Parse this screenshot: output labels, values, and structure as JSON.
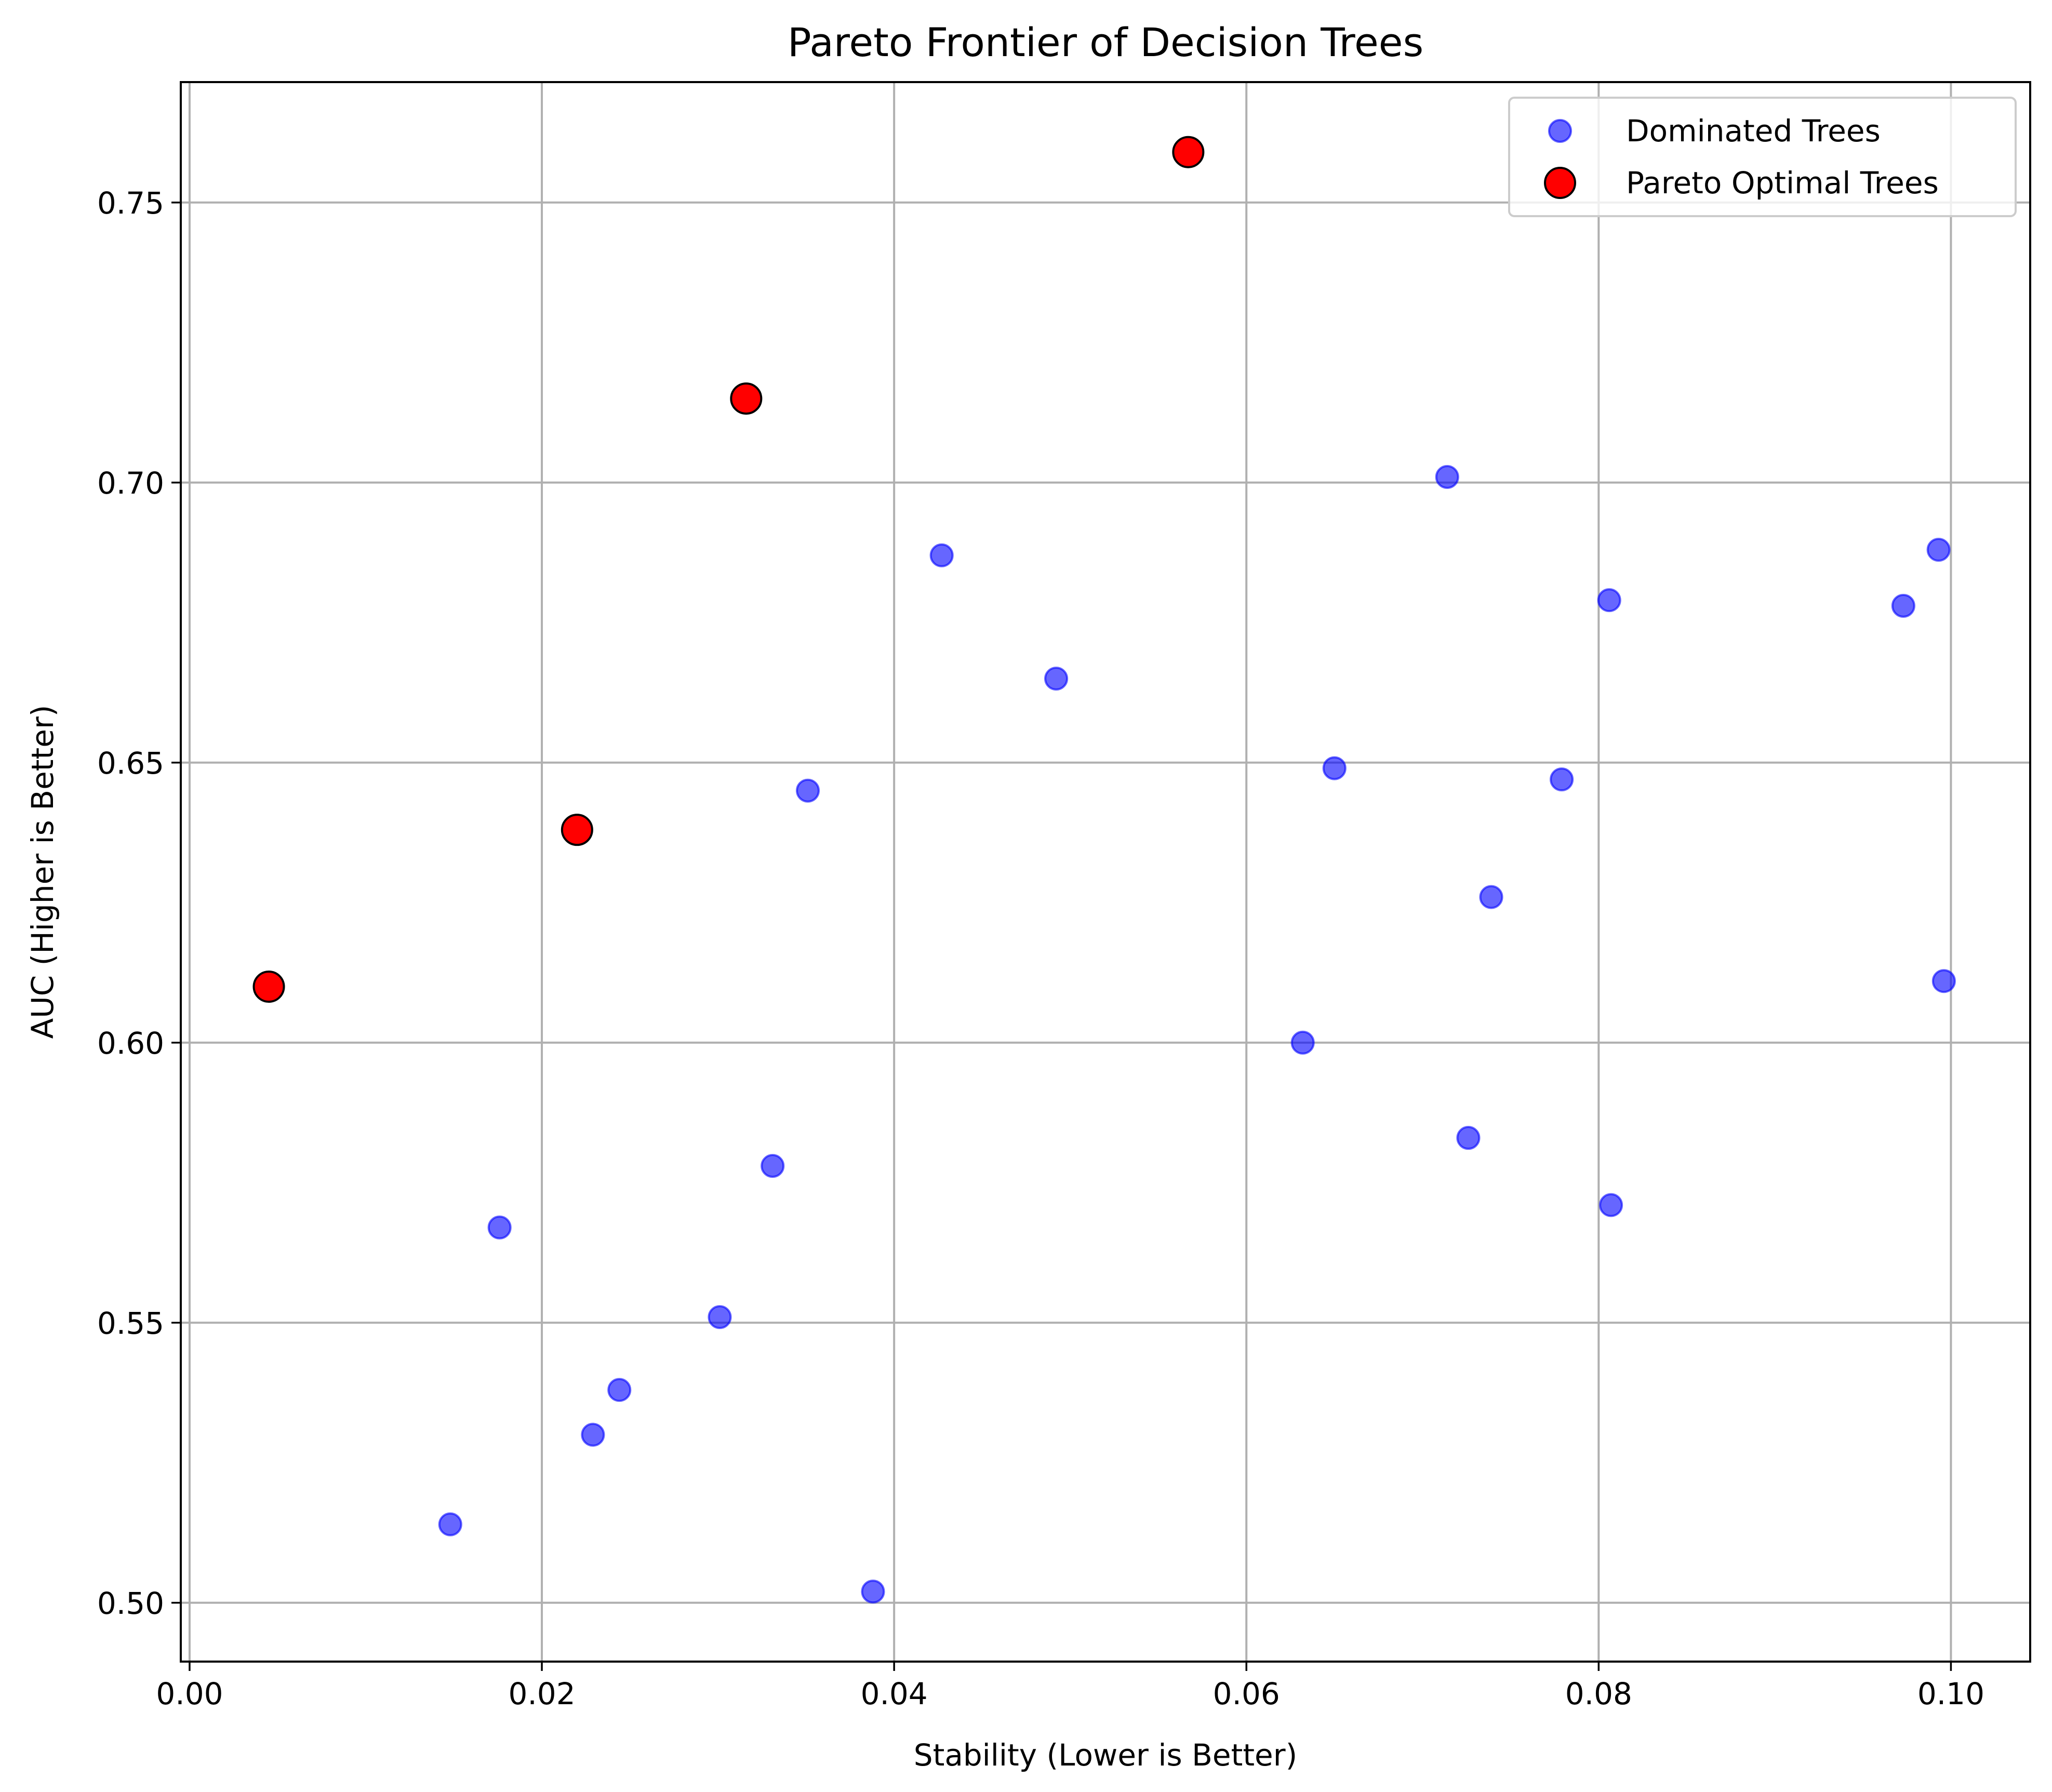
{
  "chart_data": {
    "type": "scatter",
    "title": "Pareto Frontier of Decision Trees",
    "xlabel": "Stability (Lower is Better)",
    "ylabel": "AUC (Higher is Better)",
    "xlim": [
      -0.0005,
      0.1045
    ],
    "ylim": [
      0.4895,
      0.7715
    ],
    "xticks": [
      0.0,
      0.02,
      0.04,
      0.06,
      0.08,
      0.1
    ],
    "xtick_labels": [
      "0.00",
      "0.02",
      "0.04",
      "0.06",
      "0.08",
      "0.10"
    ],
    "yticks": [
      0.5,
      0.55,
      0.6,
      0.65,
      0.7,
      0.75
    ],
    "ytick_labels": [
      "0.50",
      "0.55",
      "0.60",
      "0.65",
      "0.70",
      "0.75"
    ],
    "grid": true,
    "legend_position": "top-right",
    "series": [
      {
        "name": "Dominated Trees",
        "color": "#0000ff",
        "alpha": 0.6,
        "marker": "circle",
        "points": [
          [
            0.0148,
            0.514
          ],
          [
            0.0176,
            0.567
          ],
          [
            0.0229,
            0.53
          ],
          [
            0.0244,
            0.538
          ],
          [
            0.0301,
            0.551
          ],
          [
            0.0331,
            0.578
          ],
          [
            0.0351,
            0.645
          ],
          [
            0.0388,
            0.502
          ],
          [
            0.0427,
            0.687
          ],
          [
            0.0492,
            0.665
          ],
          [
            0.0632,
            0.6
          ],
          [
            0.065,
            0.649
          ],
          [
            0.0714,
            0.701
          ],
          [
            0.0726,
            0.583
          ],
          [
            0.0739,
            0.626
          ],
          [
            0.0779,
            0.647
          ],
          [
            0.0806,
            0.679
          ],
          [
            0.0807,
            0.571
          ],
          [
            0.0973,
            0.678
          ],
          [
            0.0993,
            0.688
          ],
          [
            0.0996,
            0.611
          ]
        ]
      },
      {
        "name": "Pareto Optimal Trees",
        "color": "#ff0000",
        "edgecolor": "#000000",
        "marker": "circle",
        "points": [
          [
            0.0045,
            0.61
          ],
          [
            0.022,
            0.638
          ],
          [
            0.0316,
            0.715
          ],
          [
            0.0567,
            0.759
          ]
        ]
      }
    ]
  }
}
